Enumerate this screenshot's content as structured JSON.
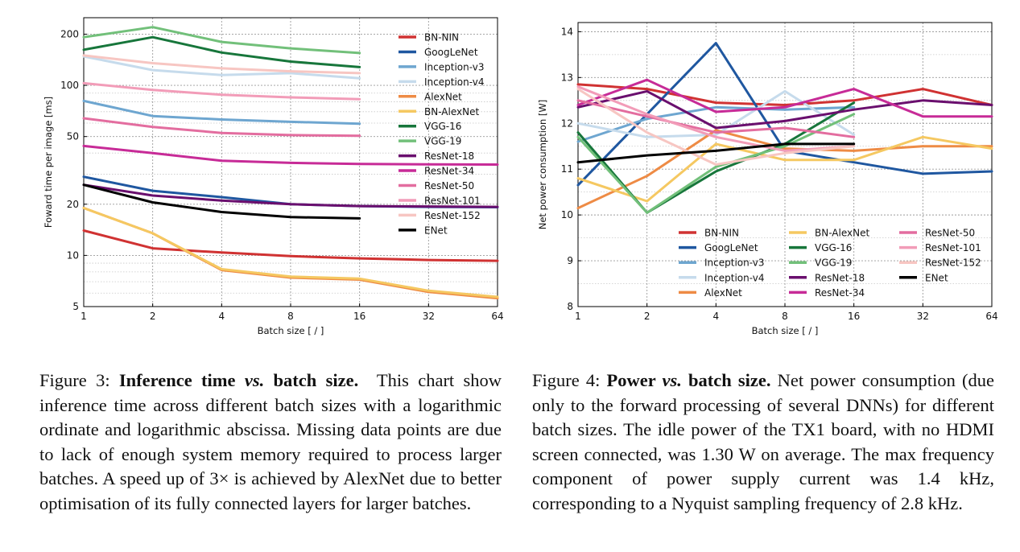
{
  "colors": {
    "BN-NIN": "#d03232",
    "GoogLeNet": "#1f57a0",
    "Inception-v3": "#6ea6d0",
    "Inception-v4": "#c6dbec",
    "AlexNet": "#ee8b45",
    "BN-AlexNet": "#f5c861",
    "VGG-16": "#17763b",
    "VGG-19": "#72c07a",
    "ResNet-18": "#6a0f6e",
    "ResNet-34": "#c72b97",
    "ResNet-50": "#e36d9f",
    "ResNet-101": "#f29cb8",
    "ResNet-152": "#f7c6c2",
    "ENet": "#000000"
  },
  "figure3": {
    "caption": {
      "label": "Figure 3:",
      "title_a": "Inference time",
      "title_vs": "vs.",
      "title_b": "batch size.",
      "body_1": "This chart show inference time across different batch sizes with a logarithmic ordinate and logarithmic abscissa. Missing data points are due to lack of enough system memory required to process larger batches. A speed up of 3",
      "times": "×",
      "body_2": " is achieved by AlexNet due to better optimisation of its fully connected layers for larger batches."
    },
    "chart_data": {
      "type": "line",
      "xscale": "log2",
      "yscale": "log",
      "xlabel": "Batch size [ / ]",
      "ylabel": "Foward time per image [ms]",
      "xlim": [
        1,
        64
      ],
      "ylim": [
        5,
        250
      ],
      "xticks": [
        1,
        2,
        4,
        8,
        16,
        32,
        64
      ],
      "yticks": [
        5,
        10,
        20,
        50,
        100,
        200
      ],
      "grid": true,
      "legend": "top-right",
      "legend_entries": [
        "BN-NIN",
        "GoogLeNet",
        "Inception-v3",
        "Inception-v4",
        "AlexNet",
        "BN-AlexNet",
        "VGG-16",
        "VGG-19",
        "ResNet-18",
        "ResNet-34",
        "ResNet-50",
        "ResNet-101",
        "ResNet-152",
        "ENet"
      ],
      "series": [
        {
          "name": "BN-NIN",
          "x": [
            1,
            2,
            4,
            8,
            16,
            32,
            64
          ],
          "values": [
            14,
            11,
            10.4,
            9.9,
            9.6,
            9.4,
            9.3
          ]
        },
        {
          "name": "GoogLeNet",
          "x": [
            1,
            2,
            4,
            8,
            16,
            32,
            64
          ],
          "values": [
            29,
            24,
            22,
            20,
            19.5,
            19.3,
            19.2
          ]
        },
        {
          "name": "Inception-v3",
          "x": [
            1,
            2,
            4,
            8,
            16
          ],
          "values": [
            81,
            66,
            63,
            61,
            59.5
          ]
        },
        {
          "name": "Inception-v4",
          "x": [
            1,
            2,
            4,
            8,
            16
          ],
          "values": [
            148,
            123,
            115,
            118,
            110
          ]
        },
        {
          "name": "AlexNet",
          "x": [
            1,
            2,
            4,
            8,
            16,
            32,
            64
          ],
          "values": [
            19,
            13.5,
            8.2,
            7.4,
            7.2,
            6.1,
            5.6
          ]
        },
        {
          "name": "BN-AlexNet",
          "x": [
            1,
            2,
            4,
            8,
            16,
            32,
            64
          ],
          "values": [
            19,
            13.5,
            8.3,
            7.5,
            7.3,
            6.2,
            5.7
          ]
        },
        {
          "name": "VGG-16",
          "x": [
            1,
            2,
            4,
            8,
            16
          ],
          "values": [
            162,
            192,
            156,
            138,
            128
          ]
        },
        {
          "name": "VGG-19",
          "x": [
            1,
            2,
            4,
            8,
            16
          ],
          "values": [
            192,
            220,
            180,
            165,
            155
          ]
        },
        {
          "name": "ResNet-18",
          "x": [
            1,
            2,
            4,
            8,
            16,
            32,
            64
          ],
          "values": [
            26,
            22.5,
            21,
            20,
            19.5,
            19.4,
            19.3
          ]
        },
        {
          "name": "ResNet-34",
          "x": [
            1,
            2,
            4,
            8,
            16,
            32,
            64
          ],
          "values": [
            44,
            40,
            36,
            35,
            34.5,
            34.3,
            34.2
          ]
        },
        {
          "name": "ResNet-50",
          "x": [
            1,
            2,
            4,
            8,
            16
          ],
          "values": [
            64,
            57,
            52.5,
            51,
            50.5
          ]
        },
        {
          "name": "ResNet-101",
          "x": [
            1,
            2,
            4,
            8,
            16
          ],
          "values": [
            103,
            94,
            88,
            85,
            83
          ]
        },
        {
          "name": "ResNet-152",
          "x": [
            1,
            2,
            4,
            8,
            16
          ],
          "values": [
            150,
            135,
            126,
            121,
            118
          ]
        },
        {
          "name": "ENet",
          "x": [
            1,
            2,
            4,
            8,
            16
          ],
          "values": [
            26,
            20.5,
            18,
            16.8,
            16.5
          ]
        }
      ]
    }
  },
  "figure4": {
    "caption": {
      "label": "Figure 4:",
      "title_a": "Power",
      "title_vs": "vs.",
      "title_b": "batch size.",
      "body": "Net power consumption (due only to the forward processing of several DNNs) for different batch sizes. The idle power of the TX1 board, with no HDMI screen connected, was 1.30 W on average. The max frequency component of power supply current was 1.4 kHz, corresponding to a Nyquist sampling frequency of 2.8 kHz."
    },
    "chart_data": {
      "type": "line",
      "xscale": "log2",
      "yscale": "linear",
      "xlabel": "Batch size [ / ]",
      "ylabel": "Net power consumption [W]",
      "xlim": [
        1,
        64
      ],
      "ylim": [
        8,
        14.2
      ],
      "xticks": [
        1,
        2,
        4,
        8,
        16,
        32,
        64
      ],
      "yticks": [
        8,
        9,
        10,
        11,
        12,
        13,
        14
      ],
      "grid": true,
      "legend": "lower-right",
      "legend_columns": [
        [
          "BN-NIN",
          "GoogLeNet",
          "Inception-v3",
          "Inception-v4",
          "AlexNet"
        ],
        [
          "BN-AlexNet",
          "VGG-16",
          "VGG-19",
          "ResNet-18",
          "ResNet-34"
        ],
        [
          "ResNet-50",
          "ResNet-101",
          "ResNet-152",
          "ENet"
        ]
      ],
      "series": [
        {
          "name": "BN-NIN",
          "x": [
            1,
            2,
            4,
            8,
            16,
            32,
            64
          ],
          "values": [
            12.85,
            12.75,
            12.45,
            12.4,
            12.5,
            12.75,
            12.4
          ]
        },
        {
          "name": "GoogLeNet",
          "x": [
            1,
            2,
            4,
            8,
            16,
            32,
            64
          ],
          "values": [
            10.65,
            12.2,
            13.75,
            11.4,
            11.15,
            10.9,
            10.95
          ]
        },
        {
          "name": "Inception-v3",
          "x": [
            1,
            2,
            4,
            8,
            16
          ],
          "values": [
            11.6,
            12.1,
            12.35,
            12.3,
            12.35
          ]
        },
        {
          "name": "Inception-v4",
          "x": [
            1,
            2,
            4,
            8,
            16
          ],
          "values": [
            12.0,
            11.7,
            11.75,
            12.7,
            11.75
          ]
        },
        {
          "name": "AlexNet",
          "x": [
            1,
            2,
            4,
            8,
            16,
            32,
            64
          ],
          "values": [
            10.15,
            10.85,
            11.85,
            11.45,
            11.4,
            11.5,
            11.5
          ]
        },
        {
          "name": "BN-AlexNet",
          "x": [
            1,
            2,
            4,
            8,
            16,
            32,
            64
          ],
          "values": [
            10.8,
            10.3,
            11.55,
            11.2,
            11.2,
            11.7,
            11.45
          ]
        },
        {
          "name": "VGG-16",
          "x": [
            1,
            2,
            4,
            8,
            16
          ],
          "values": [
            11.8,
            10.05,
            10.95,
            11.55,
            12.45
          ]
        },
        {
          "name": "VGG-19",
          "x": [
            1,
            2,
            4,
            8,
            16
          ],
          "values": [
            11.7,
            10.05,
            11.05,
            11.5,
            12.2
          ]
        },
        {
          "name": "ResNet-18",
          "x": [
            1,
            2,
            4,
            8,
            16,
            32,
            64
          ],
          "values": [
            12.35,
            12.7,
            11.9,
            12.05,
            12.3,
            12.5,
            12.4
          ]
        },
        {
          "name": "ResNet-34",
          "x": [
            1,
            2,
            4,
            8,
            16,
            32,
            64
          ],
          "values": [
            12.4,
            12.95,
            12.25,
            12.35,
            12.75,
            12.15,
            12.15
          ]
        },
        {
          "name": "ResNet-50",
          "x": [
            1,
            2,
            4,
            8,
            16
          ],
          "values": [
            12.5,
            12.15,
            11.8,
            11.9,
            11.7
          ]
        },
        {
          "name": "ResNet-101",
          "x": [
            1,
            2,
            4,
            8,
            16
          ],
          "values": [
            12.8,
            12.2,
            11.7,
            11.4,
            11.5
          ]
        },
        {
          "name": "ResNet-152",
          "x": [
            1,
            2,
            4,
            8,
            16
          ],
          "values": [
            12.75,
            11.8,
            11.1,
            11.35,
            11.5
          ]
        },
        {
          "name": "ENet",
          "x": [
            1,
            2,
            4,
            8,
            16
          ],
          "values": [
            11.15,
            11.3,
            11.4,
            11.55,
            11.55
          ]
        }
      ]
    }
  }
}
